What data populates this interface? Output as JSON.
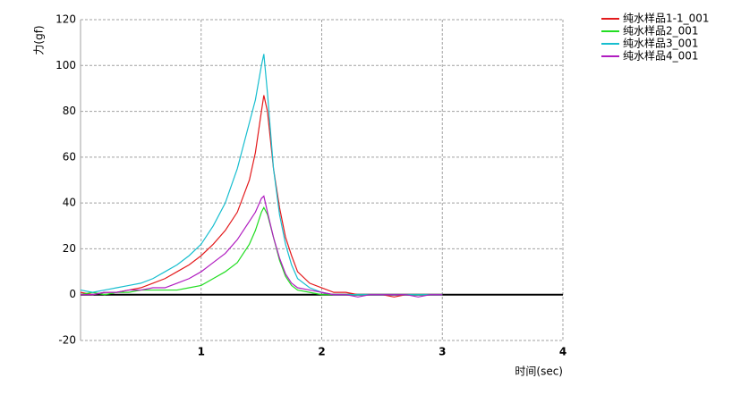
{
  "chart_data": {
    "type": "line",
    "y_label": "力(gf)",
    "x_label": "时间(sec)",
    "x": [
      0,
      0.1,
      0.2,
      0.3,
      0.4,
      0.5,
      0.6,
      0.7,
      0.8,
      0.9,
      1.0,
      1.1,
      1.2,
      1.3,
      1.4,
      1.45,
      1.5,
      1.52,
      1.55,
      1.6,
      1.65,
      1.7,
      1.75,
      1.8,
      1.9,
      2.0,
      2.1,
      2.2,
      2.3,
      2.4,
      2.5,
      2.6,
      2.7,
      2.8,
      2.9,
      3.0
    ],
    "series": [
      {
        "name": "纯水样品1-1_001",
        "color": "#e31a1c",
        "values": [
          1,
          0,
          1,
          1,
          2,
          3,
          5,
          7,
          10,
          13,
          17,
          22,
          28,
          36,
          50,
          62,
          80,
          87,
          80,
          55,
          38,
          25,
          17,
          10,
          5,
          3,
          1,
          1,
          0,
          0,
          0,
          -1,
          0,
          0,
          0,
          0
        ]
      },
      {
        "name": "纯水样品2_001",
        "color": "#22dd22",
        "values": [
          0,
          1,
          0,
          1,
          1,
          2,
          2,
          2,
          2,
          3,
          4,
          7,
          10,
          14,
          22,
          28,
          36,
          38,
          35,
          25,
          15,
          8,
          4,
          2,
          1,
          0,
          0,
          0,
          0,
          0,
          0,
          0,
          0,
          0,
          0,
          0
        ]
      },
      {
        "name": "纯水样品3_001",
        "color": "#17becf",
        "values": [
          2,
          1,
          2,
          3,
          4,
          5,
          7,
          10,
          13,
          17,
          22,
          30,
          40,
          55,
          75,
          85,
          100,
          105,
          88,
          55,
          35,
          22,
          13,
          7,
          3,
          1,
          0,
          0,
          0,
          0,
          0,
          0,
          0,
          0,
          0,
          0
        ]
      },
      {
        "name": "纯水样品4_001",
        "color": "#b01cc0",
        "values": [
          0,
          0,
          1,
          1,
          2,
          2,
          3,
          3,
          5,
          7,
          10,
          14,
          18,
          24,
          32,
          36,
          42,
          43,
          36,
          25,
          16,
          9,
          5,
          3,
          2,
          1,
          0,
          0,
          -1,
          0,
          0,
          0,
          0,
          -1,
          0,
          0
        ]
      }
    ],
    "xlim": [
      0,
      4
    ],
    "xticks": [
      1,
      2,
      3,
      4
    ],
    "ylim": [
      -20,
      120
    ],
    "yticks": [
      -20,
      0,
      20,
      40,
      60,
      80,
      100,
      120
    ],
    "grid": true,
    "legend": "top-right"
  }
}
